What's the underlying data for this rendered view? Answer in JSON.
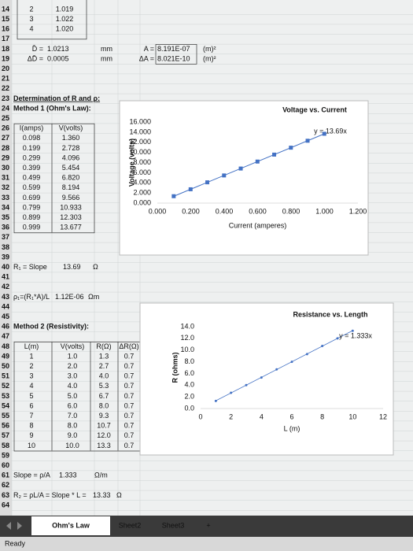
{
  "sheet": {
    "row_numbers": [
      "14",
      "15",
      "16",
      "17",
      "18",
      "19",
      "20",
      "21",
      "22",
      "23",
      "24",
      "25",
      "26",
      "27",
      "28",
      "29",
      "30",
      "31",
      "32",
      "33",
      "34",
      "35",
      "36",
      "37",
      "38",
      "39",
      "40",
      "41",
      "42",
      "43",
      "44",
      "45",
      "46",
      "47",
      "48",
      "49",
      "50",
      "51",
      "52",
      "53",
      "54",
      "55",
      "56",
      "57",
      "58",
      "59",
      "60",
      "61",
      "62",
      "63",
      "64"
    ],
    "top": [
      [
        "2",
        "1.019"
      ],
      [
        "3",
        "1.022"
      ],
      [
        "4",
        "1.020"
      ]
    ],
    "dims": [
      {
        "sym": "D̄ =",
        "value": "1.0213",
        "unit": "mm",
        "sym2": "A =",
        "value2": "8.191E-07",
        "unit2": "(m)²"
      },
      {
        "sym": "ΔD̄ =",
        "value": "0.0005",
        "unit": "mm",
        "sym2": "ΔA =",
        "value2": "8.021E-10",
        "unit2": "(m)²"
      }
    ],
    "heading": "Determination of R and ρ:",
    "method1": {
      "title": "Method 1 (Ohm's Law):",
      "headers": [
        "I(amps)",
        "V(volts)"
      ],
      "rows": [
        [
          "0.098",
          "1.360"
        ],
        [
          "0.199",
          "2.728"
        ],
        [
          "0.299",
          "4.096"
        ],
        [
          "0.399",
          "5.454"
        ],
        [
          "0.499",
          "6.820"
        ],
        [
          "0.599",
          "8.194"
        ],
        [
          "0.699",
          "9.566"
        ],
        [
          "0.799",
          "10.933"
        ],
        [
          "0.899",
          "12.303"
        ],
        [
          "0.999",
          "13.677"
        ]
      ]
    },
    "r1": {
      "label": "R₁ = Slope",
      "value": "13.69",
      "unit": "Ω"
    },
    "rho1": {
      "label": "ρ₁=(R₁*A)/L",
      "value": "1.12E-06",
      "unit": "Ωm"
    },
    "method2": {
      "title": "Method 2 (Resistivity):",
      "headers": [
        "L(m)",
        "V(volts)",
        "R(Ω)",
        "ΔR(Ω)"
      ],
      "rows": [
        [
          "1",
          "1.0",
          "1.3",
          "0.7"
        ],
        [
          "2",
          "2.0",
          "2.7",
          "0.7"
        ],
        [
          "3",
          "3.0",
          "4.0",
          "0.7"
        ],
        [
          "4",
          "4.0",
          "5.3",
          "0.7"
        ],
        [
          "5",
          "5.0",
          "6.7",
          "0.7"
        ],
        [
          "6",
          "6.0",
          "8.0",
          "0.7"
        ],
        [
          "7",
          "7.0",
          "9.3",
          "0.7"
        ],
        [
          "8",
          "8.0",
          "10.7",
          "0.7"
        ],
        [
          "9",
          "9.0",
          "12.0",
          "0.7"
        ],
        [
          "10",
          "10.0",
          "13.3",
          "0.7"
        ]
      ]
    },
    "slope": {
      "label": "Slope = ρ/A",
      "value": "1.333",
      "unit": "Ω/m"
    },
    "r2": {
      "label": "R₂ = ρL/A = Slope * L =",
      "value": "13.33",
      "unit": "Ω"
    }
  },
  "tabs": [
    "Ohm's Law",
    "Sheet2",
    "Sheet3",
    "+"
  ],
  "status": "Ready",
  "chart_data": [
    {
      "type": "scatter",
      "title": "Voltage vs. Current",
      "x_label": "Current (amperes)",
      "y_label": "Voltage (volts)",
      "x": [
        0.098,
        0.199,
        0.299,
        0.399,
        0.499,
        0.599,
        0.699,
        0.799,
        0.899,
        0.999
      ],
      "values": [
        1.36,
        2.728,
        4.096,
        5.454,
        6.82,
        8.194,
        9.566,
        10.933,
        12.303,
        13.677
      ],
      "color": "#4472c4",
      "marker": "square",
      "trendline": "y = 13.69x",
      "grid": false,
      "xlim": [
        0,
        1.2
      ],
      "ylim": [
        0,
        16
      ],
      "xticks": [
        {
          "value": 0,
          "label": "0.000"
        },
        {
          "value": 0.2,
          "label": "0.200"
        },
        {
          "value": 0.4,
          "label": "0.400"
        },
        {
          "value": 0.6,
          "label": "0.600"
        },
        {
          "value": 0.8,
          "label": "0.800"
        },
        {
          "value": 1.0,
          "label": "1.000"
        },
        {
          "value": 1.2,
          "label": "1.200"
        }
      ],
      "yticks": [
        {
          "value": 0,
          "label": "0.000"
        },
        {
          "value": 2,
          "label": "2.000"
        },
        {
          "value": 4,
          "label": "4.000"
        },
        {
          "value": 6,
          "label": "6.000"
        },
        {
          "value": 8,
          "label": "8.000"
        },
        {
          "value": 10,
          "label": "10.000"
        },
        {
          "value": 12,
          "label": "12.000"
        },
        {
          "value": 14,
          "label": "14.000"
        },
        {
          "value": 16,
          "label": "16.000"
        }
      ]
    },
    {
      "type": "scatter",
      "title": "Resistance vs. Length",
      "x_label": "L (m)",
      "y_label": "R (ohms)",
      "x": [
        1,
        2,
        3,
        4,
        5,
        6,
        7,
        8,
        9,
        10
      ],
      "values": [
        1.3,
        2.7,
        4.0,
        5.3,
        6.7,
        8.0,
        9.3,
        10.7,
        12.0,
        13.3
      ],
      "color": "#4472c4",
      "marker": "dot",
      "trendline": "y = 1.333x",
      "grid": false,
      "xlim": [
        0,
        12
      ],
      "ylim": [
        0,
        14
      ],
      "xticks": [
        0,
        2,
        4,
        6,
        8,
        10,
        12
      ],
      "yticks": [
        {
          "value": 0,
          "label": "0.0"
        },
        {
          "value": 2,
          "label": "2.0"
        },
        {
          "value": 4,
          "label": "4.0"
        },
        {
          "value": 6,
          "label": "6.0"
        },
        {
          "value": 8,
          "label": "8.0"
        },
        {
          "value": 10,
          "label": "10.0"
        },
        {
          "value": 12,
          "label": "12.0"
        },
        {
          "value": 14,
          "label": "14.0"
        }
      ]
    }
  ]
}
